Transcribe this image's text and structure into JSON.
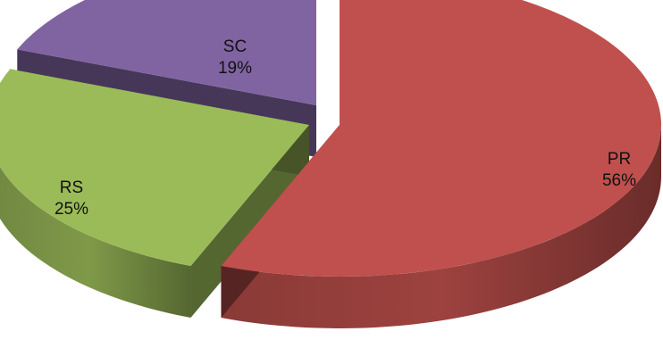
{
  "chart_data": {
    "type": "pie",
    "title": "",
    "style": "3d-exploded",
    "legend": "none",
    "slices": [
      {
        "label": "PR",
        "value": 56,
        "value_label": "56%",
        "color": "#c0504d"
      },
      {
        "label": "RS",
        "value": 25,
        "value_label": "25%",
        "color": "#9bbb59"
      },
      {
        "label": "SC",
        "value": 19,
        "value_label": "19%",
        "color": "#8064a2"
      }
    ]
  }
}
